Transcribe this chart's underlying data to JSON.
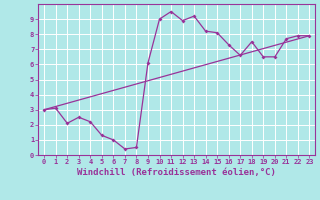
{
  "title": "",
  "xlabel": "Windchill (Refroidissement éolien,°C)",
  "ylabel": "",
  "background_color": "#b0e8e8",
  "grid_color": "#d0f0f0",
  "line_color": "#993399",
  "spine_color": "#993399",
  "xlim": [
    -0.5,
    23.5
  ],
  "ylim": [
    0,
    10
  ],
  "xticks": [
    0,
    1,
    2,
    3,
    4,
    5,
    6,
    7,
    8,
    9,
    10,
    11,
    12,
    13,
    14,
    15,
    16,
    17,
    18,
    19,
    20,
    21,
    22,
    23
  ],
  "yticks": [
    0,
    1,
    2,
    3,
    4,
    5,
    6,
    7,
    8,
    9
  ],
  "curve_x": [
    0,
    1,
    2,
    3,
    4,
    5,
    6,
    7,
    8,
    9,
    10,
    11,
    12,
    13,
    14,
    15,
    16,
    17,
    18,
    19,
    20,
    21,
    22,
    23
  ],
  "curve_y": [
    3.0,
    3.1,
    2.1,
    2.5,
    2.2,
    1.3,
    1.0,
    0.4,
    0.5,
    6.1,
    9.0,
    9.5,
    8.9,
    9.2,
    8.2,
    8.1,
    7.3,
    6.6,
    7.5,
    6.5,
    6.5,
    7.7,
    7.9,
    7.9
  ],
  "line_x": [
    0,
    23
  ],
  "line_y": [
    3.0,
    7.9
  ],
  "font_family": "monospace",
  "tick_fontsize": 5.0,
  "xlabel_fontsize": 6.5,
  "marker": "D",
  "markersize": 2.0,
  "linewidth": 0.9
}
